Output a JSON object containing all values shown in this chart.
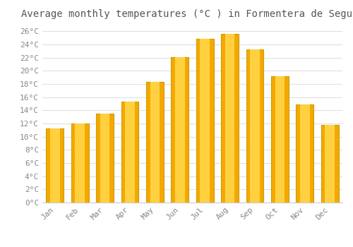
{
  "title": "Average monthly temperatures (°C ) in Formentera de Segura",
  "months": [
    "Jan",
    "Feb",
    "Mar",
    "Apr",
    "May",
    "Jun",
    "Jul",
    "Aug",
    "Sep",
    "Oct",
    "Nov",
    "Dec"
  ],
  "values": [
    11.3,
    12.0,
    13.5,
    15.3,
    18.3,
    22.1,
    24.9,
    25.6,
    23.3,
    19.2,
    14.9,
    11.8
  ],
  "bar_color_center": "#FFD040",
  "bar_color_edge": "#F5A800",
  "bar_border_color": "#C8A000",
  "background_color": "#ffffff",
  "grid_color": "#e0e0e0",
  "ytick_step": 2,
  "ylim": [
    0,
    27
  ],
  "title_fontsize": 10,
  "tick_fontsize": 8,
  "tick_color": "#888888",
  "title_color": "#555555"
}
